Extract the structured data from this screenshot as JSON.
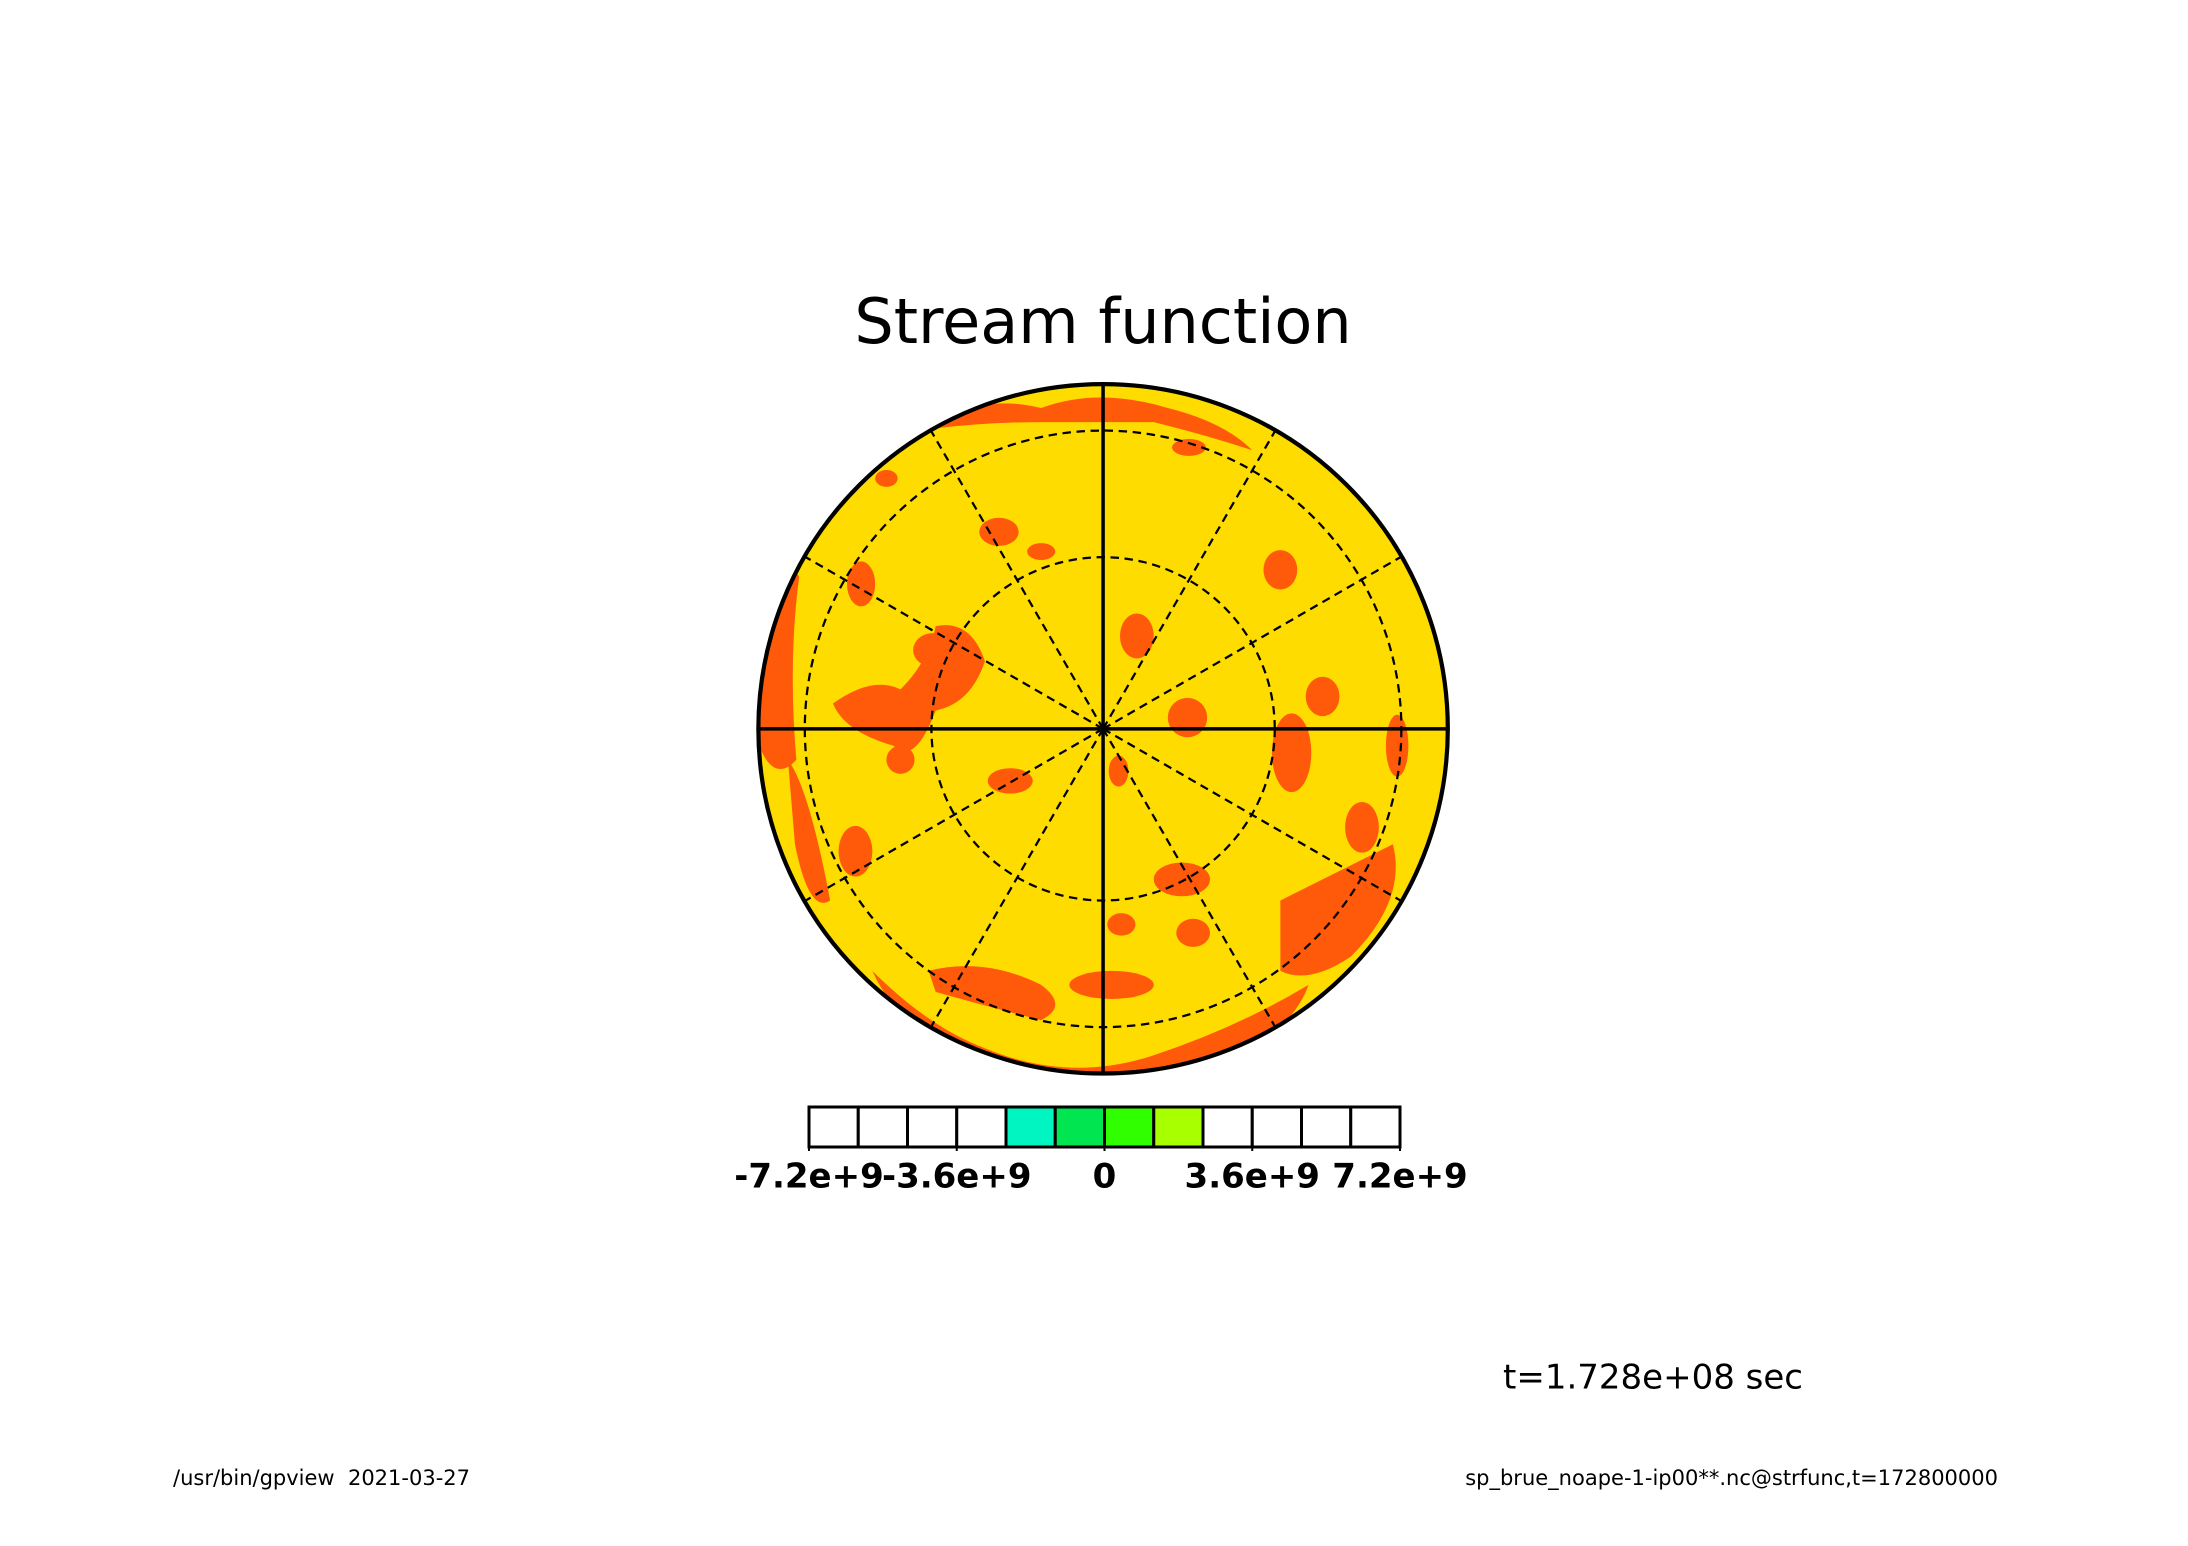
{
  "chart_data": {
    "type": "contour",
    "title": "Stream function",
    "annotation": "t=1.728e+08 sec",
    "footer_left": "/usr/bin/gpview  2021-03-27",
    "footer_right": "sp_brue_noape-1-ip00**.nc@strfunc,t=172800000",
    "colorbar": {
      "lim": [
        -7200000000,
        7200000000
      ],
      "colors": [
        "#ffffff",
        "#ffffff",
        "#ffffff",
        "#ffffff",
        "#00f5c0",
        "#00e550",
        "#30ff00",
        "#a8ff00",
        "#ffffff",
        "#ffffff",
        "#ffffff",
        "#ffffff"
      ],
      "ticks": [
        {
          "value": -7200000000,
          "label": "-7.2e+9"
        },
        {
          "value": -3600000000,
          "label": "-3.6e+9"
        },
        0,
        {
          "value": 3600000000,
          "label": "3.6e+9"
        },
        {
          "value": 7200000000,
          "label": "7.2e+9"
        }
      ]
    }
  }
}
